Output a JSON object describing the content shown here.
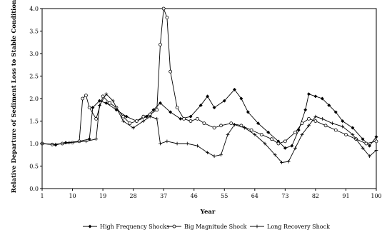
{
  "chart_data": {
    "type": "line",
    "xlabel": "Year",
    "ylabel": "Relative Departure of Sediment Loss to Stable Condition",
    "xlim": [
      1,
      100
    ],
    "ylim": [
      0,
      4
    ],
    "grid": false,
    "legend_position": "bottom",
    "x_ticks": [
      "1",
      "10",
      "19",
      "28",
      "37",
      "46",
      "55",
      "64",
      "73",
      "82",
      "91",
      "100"
    ],
    "y_ticks": [
      "0.0",
      "0.5",
      "1.0",
      "1.5",
      "2.0",
      "2.5",
      "3.0",
      "3.5",
      "4.0"
    ],
    "series": [
      {
        "name": "High Frequency Shocks",
        "marker": "diamond",
        "points": [
          [
            1,
            1.0
          ],
          [
            5,
            0.97
          ],
          [
            8,
            1.02
          ],
          [
            12,
            1.05
          ],
          [
            15,
            1.1
          ],
          [
            16,
            1.8
          ],
          [
            18,
            1.95
          ],
          [
            20,
            1.9
          ],
          [
            23,
            1.75
          ],
          [
            26,
            1.6
          ],
          [
            29,
            1.5
          ],
          [
            32,
            1.6
          ],
          [
            34,
            1.75
          ],
          [
            36,
            1.9
          ],
          [
            39,
            1.7
          ],
          [
            42,
            1.55
          ],
          [
            45,
            1.6
          ],
          [
            48,
            1.85
          ],
          [
            50,
            2.05
          ],
          [
            52,
            1.8
          ],
          [
            55,
            1.95
          ],
          [
            58,
            2.2
          ],
          [
            60,
            2.0
          ],
          [
            62,
            1.7
          ],
          [
            65,
            1.45
          ],
          [
            68,
            1.25
          ],
          [
            71,
            1.05
          ],
          [
            73,
            0.9
          ],
          [
            75,
            0.95
          ],
          [
            77,
            1.3
          ],
          [
            79,
            1.75
          ],
          [
            80,
            2.1
          ],
          [
            82,
            2.05
          ],
          [
            84,
            2.0
          ],
          [
            86,
            1.85
          ],
          [
            88,
            1.7
          ],
          [
            90,
            1.5
          ],
          [
            93,
            1.35
          ],
          [
            96,
            1.1
          ],
          [
            98,
            0.95
          ],
          [
            100,
            1.15
          ]
        ]
      },
      {
        "name": "Big Magnitude Shock",
        "marker": "circle",
        "points": [
          [
            1,
            1.0
          ],
          [
            4,
            0.98
          ],
          [
            7,
            1.0
          ],
          [
            10,
            1.02
          ],
          [
            12,
            1.05
          ],
          [
            13,
            2.0
          ],
          [
            14,
            2.07
          ],
          [
            15,
            1.8
          ],
          [
            17,
            1.55
          ],
          [
            19,
            2.05
          ],
          [
            21,
            1.9
          ],
          [
            23,
            1.8
          ],
          [
            25,
            1.6
          ],
          [
            27,
            1.45
          ],
          [
            29,
            1.5
          ],
          [
            31,
            1.6
          ],
          [
            33,
            1.65
          ],
          [
            35,
            1.75
          ],
          [
            36,
            3.2
          ],
          [
            37,
            4.0
          ],
          [
            38,
            3.8
          ],
          [
            39,
            2.6
          ],
          [
            41,
            1.8
          ],
          [
            43,
            1.55
          ],
          [
            45,
            1.5
          ],
          [
            47,
            1.55
          ],
          [
            49,
            1.45
          ],
          [
            52,
            1.35
          ],
          [
            54,
            1.4
          ],
          [
            57,
            1.45
          ],
          [
            60,
            1.4
          ],
          [
            63,
            1.3
          ],
          [
            66,
            1.2
          ],
          [
            69,
            1.1
          ],
          [
            71,
            1.0
          ],
          [
            73,
            1.05
          ],
          [
            76,
            1.25
          ],
          [
            78,
            1.45
          ],
          [
            80,
            1.55
          ],
          [
            82,
            1.5
          ],
          [
            85,
            1.4
          ],
          [
            88,
            1.3
          ],
          [
            91,
            1.2
          ],
          [
            94,
            1.1
          ],
          [
            97,
            1.0
          ],
          [
            100,
            1.05
          ]
        ]
      },
      {
        "name": "Long Recovery Shock",
        "marker": "plus",
        "points": [
          [
            1,
            1.0
          ],
          [
            5,
            0.98
          ],
          [
            9,
            1.02
          ],
          [
            14,
            1.05
          ],
          [
            17,
            1.1
          ],
          [
            18,
            1.85
          ],
          [
            20,
            2.1
          ],
          [
            22,
            1.95
          ],
          [
            25,
            1.5
          ],
          [
            28,
            1.35
          ],
          [
            31,
            1.5
          ],
          [
            33,
            1.6
          ],
          [
            35,
            1.55
          ],
          [
            36,
            1.0
          ],
          [
            38,
            1.05
          ],
          [
            41,
            1.0
          ],
          [
            44,
            1.0
          ],
          [
            47,
            0.95
          ],
          [
            50,
            0.8
          ],
          [
            52,
            0.72
          ],
          [
            54,
            0.75
          ],
          [
            56,
            1.2
          ],
          [
            58,
            1.42
          ],
          [
            61,
            1.35
          ],
          [
            64,
            1.2
          ],
          [
            67,
            1.0
          ],
          [
            70,
            0.75
          ],
          [
            72,
            0.58
          ],
          [
            74,
            0.6
          ],
          [
            76,
            0.9
          ],
          [
            78,
            1.2
          ],
          [
            80,
            1.4
          ],
          [
            82,
            1.6
          ],
          [
            84,
            1.55
          ],
          [
            87,
            1.45
          ],
          [
            90,
            1.38
          ],
          [
            93,
            1.2
          ],
          [
            96,
            0.9
          ],
          [
            98,
            0.72
          ],
          [
            100,
            0.85
          ]
        ]
      }
    ]
  }
}
